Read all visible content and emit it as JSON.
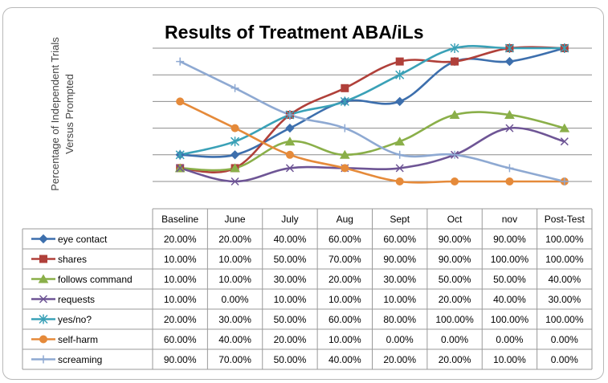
{
  "chart_data": {
    "type": "line",
    "title": "Results of Treatment ABA/iLs",
    "ylabel_line1": "Percentage of Independent Trials",
    "ylabel_line2": "Versus Prompted",
    "ylim": [
      0,
      100
    ],
    "grid": true,
    "legend": "data-table",
    "categories": [
      "Baseline",
      "June",
      "July",
      "Aug",
      "Sept",
      "Oct",
      "nov",
      "Post-Test"
    ],
    "series": [
      {
        "name": "eye contact",
        "color": "#3d6fad",
        "marker": "diamond",
        "values": [
          20,
          20,
          40,
          60,
          60,
          90,
          90,
          100
        ],
        "labels": [
          "20.00%",
          "20.00%",
          "40.00%",
          "60.00%",
          "60.00%",
          "90.00%",
          "90.00%",
          "100.00%"
        ]
      },
      {
        "name": "shares",
        "color": "#b0403a",
        "marker": "square",
        "values": [
          10,
          10,
          50,
          70,
          90,
          90,
          100,
          100
        ],
        "labels": [
          "10.00%",
          "10.00%",
          "50.00%",
          "70.00%",
          "90.00%",
          "90.00%",
          "100.00%",
          "100.00%"
        ]
      },
      {
        "name": "follows command",
        "color": "#8aaf49",
        "marker": "triangle",
        "values": [
          10,
          10,
          30,
          20,
          30,
          50,
          50,
          40
        ],
        "labels": [
          "10.00%",
          "10.00%",
          "30.00%",
          "20.00%",
          "30.00%",
          "50.00%",
          "50.00%",
          "40.00%"
        ]
      },
      {
        "name": "requests",
        "color": "#6e5595",
        "marker": "x",
        "values": [
          10,
          0,
          10,
          10,
          10,
          20,
          40,
          30
        ],
        "labels": [
          "10.00%",
          "0.00%",
          "10.00%",
          "10.00%",
          "10.00%",
          "20.00%",
          "40.00%",
          "30.00%"
        ]
      },
      {
        "name": "yes/no?",
        "color": "#3aa1b7",
        "marker": "star",
        "values": [
          20,
          30,
          50,
          60,
          80,
          100,
          100,
          100
        ],
        "labels": [
          "20.00%",
          "30.00%",
          "50.00%",
          "60.00%",
          "80.00%",
          "100.00%",
          "100.00%",
          "100.00%"
        ]
      },
      {
        "name": "self-harm",
        "color": "#e58a3a",
        "marker": "circle",
        "values": [
          60,
          40,
          20,
          10,
          0,
          0,
          0,
          0
        ],
        "labels": [
          "60.00%",
          "40.00%",
          "20.00%",
          "10.00%",
          "0.00%",
          "0.00%",
          "0.00%",
          "0.00%"
        ]
      },
      {
        "name": "screaming",
        "color": "#8ea9d2",
        "marker": "plus",
        "values": [
          90,
          70,
          50,
          40,
          20,
          20,
          10,
          0
        ],
        "labels": [
          "90.00%",
          "70.00%",
          "50.00%",
          "40.00%",
          "20.00%",
          "20.00%",
          "10.00%",
          "0.00%"
        ]
      }
    ]
  }
}
